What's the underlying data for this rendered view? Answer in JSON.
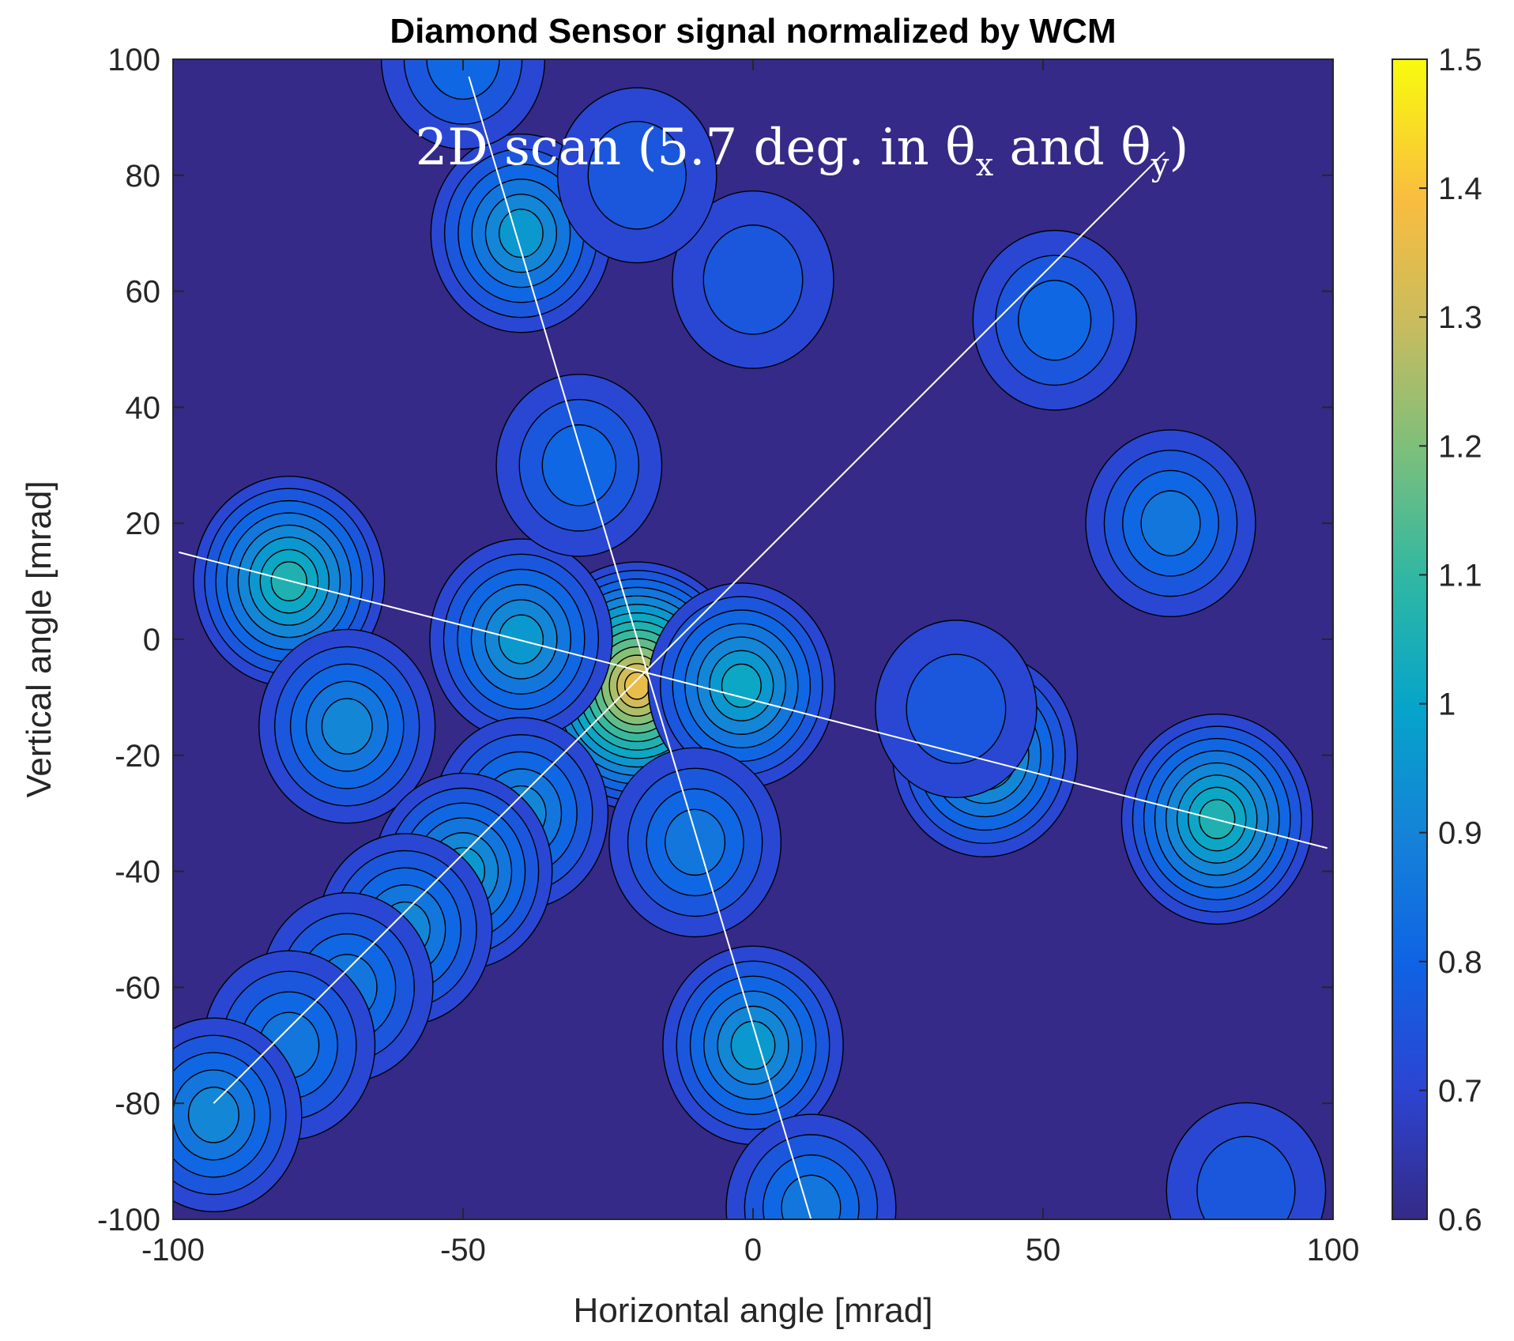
{
  "chart_data": {
    "type": "heatmap",
    "subtype": "filled-contour",
    "title": "Diamond Sensor signal normalized by WCM",
    "xlabel": "Horizontal angle [mrad]",
    "ylabel": "Vertical angle [mrad]",
    "xlim": [
      -100,
      100
    ],
    "ylim": [
      -100,
      100
    ],
    "xticks": [
      -100,
      -50,
      0,
      50,
      100
    ],
    "yticks": [
      -100,
      -80,
      -60,
      -40,
      -20,
      0,
      20,
      40,
      60,
      80,
      100
    ],
    "colorbar": {
      "range": [
        0.6,
        1.5
      ],
      "ticks": [
        "0.6",
        "0.7",
        "0.8",
        "0.9",
        "1",
        "1.1",
        "1.2",
        "1.3",
        "1.4",
        "1.5"
      ],
      "colormap": "parula"
    },
    "annotation": {
      "main": "2D scan (5.7 deg. in θ",
      "sub_x": "x",
      "middle": " and θ",
      "sub_y": "y",
      "end": ")"
    },
    "background_level": 0.66,
    "peaks": [
      {
        "x": -20,
        "y": -8,
        "value": 1.38
      },
      {
        "x": -2,
        "y": -8,
        "value": 1.02
      },
      {
        "x": -40,
        "y": 0,
        "value": 0.98
      },
      {
        "x": -30,
        "y": 30,
        "value": 0.82
      },
      {
        "x": -40,
        "y": 70,
        "value": 0.96
      },
      {
        "x": -80,
        "y": 10,
        "value": 1.06
      },
      {
        "x": -70,
        "y": -15,
        "value": 0.92
      },
      {
        "x": -40,
        "y": -30,
        "value": 0.9
      },
      {
        "x": -50,
        "y": -40,
        "value": 0.94
      },
      {
        "x": -60,
        "y": -50,
        "value": 0.9
      },
      {
        "x": -70,
        "y": -60,
        "value": 0.88
      },
      {
        "x": -80,
        "y": -70,
        "value": 0.88
      },
      {
        "x": -93,
        "y": -82,
        "value": 0.92
      },
      {
        "x": -10,
        "y": -35,
        "value": 0.88
      },
      {
        "x": 0,
        "y": -70,
        "value": 0.96
      },
      {
        "x": 10,
        "y": -98,
        "value": 0.86
      },
      {
        "x": 40,
        "y": -20,
        "value": 1.0
      },
      {
        "x": 80,
        "y": -31,
        "value": 1.06
      },
      {
        "x": 52,
        "y": 55,
        "value": 0.8
      },
      {
        "x": 0,
        "y": 62,
        "value": 0.78
      },
      {
        "x": 72,
        "y": 20,
        "value": 0.86
      },
      {
        "x": -50,
        "y": 100,
        "value": 0.8
      },
      {
        "x": -20,
        "y": 80,
        "value": 0.76
      },
      {
        "x": 35,
        "y": -12,
        "value": 0.78
      },
      {
        "x": 85,
        "y": -95,
        "value": 0.76
      }
    ],
    "guide_lines": [
      {
        "from": [
          -49,
          97
        ],
        "to": [
          10,
          -100
        ]
      },
      {
        "from": [
          -99,
          15
        ],
        "to": [
          99,
          -36
        ]
      },
      {
        "from": [
          -93,
          -80
        ],
        "to": [
          71,
          84
        ]
      }
    ],
    "grid": false
  }
}
